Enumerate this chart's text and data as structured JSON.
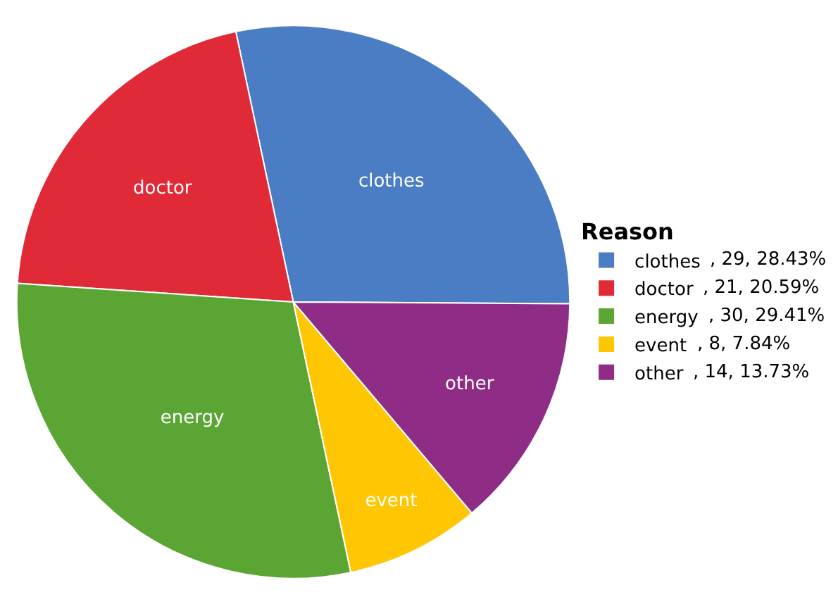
{
  "chart_data": {
    "type": "pie",
    "legend_title": "Reason",
    "categories": [
      "clothes",
      "doctor",
      "energy",
      "event",
      "other"
    ],
    "values": [
      29,
      21,
      30,
      8,
      14
    ],
    "value_labels": [
      ", 29, 28.43%",
      ", 21, 20.59%",
      ", 30, 29.41%",
      ", 8, 7.84%",
      ", 14, 13.73%"
    ],
    "colors": [
      "#4a7dc4",
      "#e12a37",
      "#5ba534",
      "#ffc703",
      "#8f2c85"
    ],
    "legend": "right"
  }
}
